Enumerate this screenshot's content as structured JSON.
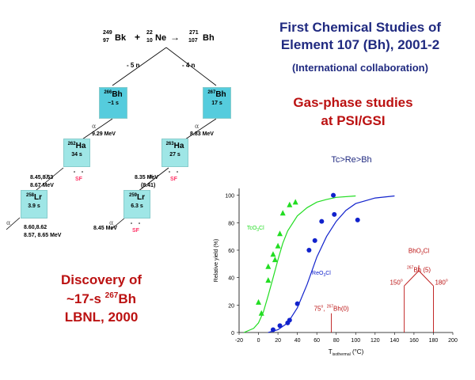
{
  "title": {
    "line1": "First Chemical Studies  of",
    "line2": "Element 107 (Bh), 2001-2",
    "line3": "(International collaboration)"
  },
  "subtitle": {
    "line1": "Gas-phase studies",
    "line2": "at PSI/GSI"
  },
  "discovery": {
    "line1": "Discovery of",
    "line2_pre": "~17-s ",
    "line2_mass": "267",
    "line2_el": "Bh",
    "line3": "LBNL, 2000"
  },
  "order_label": "Tc>Re>Bh",
  "colors": {
    "navy": "#202a80",
    "red": "#bb1111",
    "green": "#22dd22",
    "blue": "#1122cc",
    "box": "#9fe6e6",
    "box_dark": "#55ccdd",
    "sf": "#ff3366"
  },
  "reaction": {
    "target_mass": "249",
    "target_z": "97",
    "target": "Bk",
    "plus": "+",
    "proj_mass": "22",
    "proj_z": "10",
    "proj": "Ne",
    "arrow": "→",
    "product_mass": "271",
    "product_z": "107",
    "product": "Bh"
  },
  "decay": {
    "branch_left": "- 5 n",
    "branch_right": "- 4 n",
    "alpha_symbol": "α",
    "sf_label": "SF",
    "nuclides": [
      {
        "mass": "266",
        "element": "Bh",
        "halflife": "~1 s"
      },
      {
        "mass": "267",
        "element": "Bh",
        "halflife": "17 s"
      },
      {
        "mass": "262",
        "element": "Ha",
        "halflife": "34 s"
      },
      {
        "mass": "263",
        "element": "Ha",
        "halflife": "27 s"
      },
      {
        "mass": "258",
        "element": "Lr",
        "halflife": "3.9 s"
      },
      {
        "mass": "259",
        "element": "Lr",
        "halflife": "6.3 s"
      }
    ],
    "energies": {
      "bh266": "9.29 MeV",
      "bh267": "8.83 MeV",
      "ha262_a": "8.45,8.53",
      "ha262_b": "8.67  MeV",
      "ha263_a": "8.35 MeV",
      "ha263_b": "(8.41)",
      "lr258_a": "8.60,8.62",
      "lr258_b": "8.57, 8.65 MeV",
      "lr259": "8.45 MeV"
    }
  },
  "chart_data": {
    "type": "scatter",
    "xlabel": "T isothermal (°C)",
    "xlabel_main": "T",
    "xlabel_sub": "isothermal",
    "xlabel_unit": " (°C)",
    "ylabel": "Relative yield (%)",
    "xlim": [
      -20,
      200
    ],
    "ylim": [
      0,
      105
    ],
    "xticks": [
      -20,
      0,
      20,
      40,
      60,
      80,
      100,
      120,
      140,
      160,
      180,
      200
    ],
    "yticks": [
      0,
      20,
      40,
      60,
      80,
      100
    ],
    "series": [
      {
        "name": "TcO3Cl",
        "label_main": "TcO",
        "label_sub": "3",
        "label_end": "Cl",
        "marker": "triangle",
        "points": [
          [
            0,
            22
          ],
          [
            3,
            14
          ],
          [
            10,
            38
          ],
          [
            10,
            48
          ],
          [
            15,
            57
          ],
          [
            17,
            53
          ],
          [
            20,
            63
          ],
          [
            22,
            72
          ],
          [
            25,
            87
          ],
          [
            32,
            93
          ],
          [
            38,
            95
          ]
        ],
        "curve": [
          [
            -15,
            0
          ],
          [
            -5,
            3
          ],
          [
            0,
            7
          ],
          [
            5,
            15
          ],
          [
            10,
            27
          ],
          [
            15,
            40
          ],
          [
            20,
            53
          ],
          [
            25,
            65
          ],
          [
            30,
            74
          ],
          [
            40,
            85
          ],
          [
            50,
            91
          ],
          [
            60,
            95
          ],
          [
            70,
            97
          ],
          [
            80,
            98.5
          ],
          [
            100,
            99.5
          ]
        ]
      },
      {
        "name": "ReO3Cl",
        "label_main": "ReO",
        "label_sub": "3",
        "label_end": "Cl",
        "marker": "circle",
        "points": [
          [
            15,
            2
          ],
          [
            22,
            5
          ],
          [
            30,
            7
          ],
          [
            32,
            9
          ],
          [
            40,
            21
          ],
          [
            52,
            60
          ],
          [
            58,
            67
          ],
          [
            65,
            81
          ],
          [
            77,
            100
          ],
          [
            78,
            86
          ],
          [
            102,
            82
          ]
        ],
        "curve": [
          [
            10,
            0
          ],
          [
            20,
            2
          ],
          [
            30,
            7
          ],
          [
            40,
            18
          ],
          [
            50,
            35
          ],
          [
            60,
            55
          ],
          [
            70,
            70
          ],
          [
            80,
            81
          ],
          [
            90,
            89
          ],
          [
            100,
            94
          ],
          [
            120,
            98
          ],
          [
            140,
            99.5
          ]
        ]
      }
    ],
    "markers": [
      {
        "x": 75,
        "label_temp": "75",
        "label_deg": "o",
        "label_sep": ", ",
        "label_mass": "267",
        "label_el": "Bh(0)"
      },
      {
        "x": 150,
        "label_temp": "150",
        "label_deg": "o"
      },
      {
        "x": 180,
        "label_temp": "180",
        "label_deg": "o"
      }
    ],
    "bh_upper": {
      "mass": "267",
      "el": "Bh (5)",
      "mol_main": "BhO",
      "mol_sub": "3",
      "mol_end": "Cl"
    }
  }
}
